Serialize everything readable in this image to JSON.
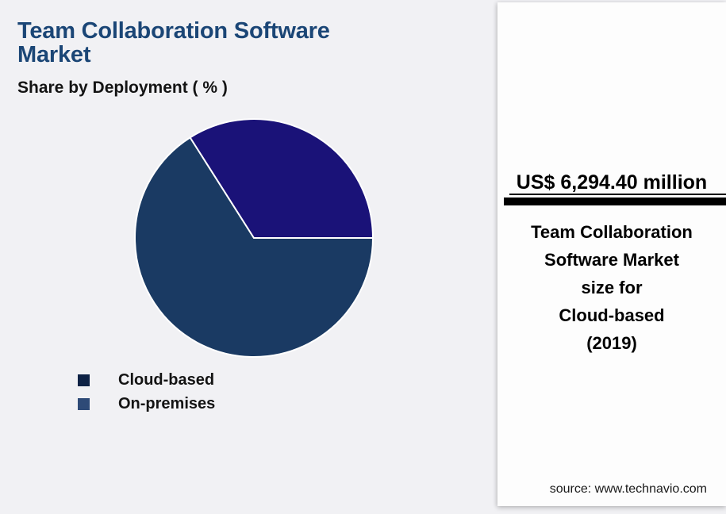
{
  "header": {
    "title": "Team Collaboration Software Market",
    "subtitle": "Share by Deployment ( % )"
  },
  "chart_data": {
    "type": "pie",
    "title": "Team Collaboration Software Market",
    "subtitle": "Share by Deployment ( % )",
    "unit": "percent",
    "start_angle_deg": 0,
    "separator_color": "#ffffff",
    "slices": [
      {
        "label": "Cloud-based",
        "value": 66,
        "color": "#1a3a63"
      },
      {
        "label": "On-premises",
        "value": 34,
        "color": "#1a1278"
      }
    ],
    "legend": [
      {
        "label": "Cloud-based",
        "swatch_color": "#0e2245"
      },
      {
        "label": "On-premises",
        "swatch_color": "#2e4a77"
      }
    ],
    "legend_position": "bottom-left"
  },
  "highlight_panel": {
    "value": "US$ 6,294.40 million",
    "description_lines": [
      "Team Collaboration",
      "Software Market",
      "size for",
      "Cloud-based",
      "(2019)"
    ],
    "source": "source: www.technavio.com"
  },
  "colors": {
    "title_blue": "#1b4676",
    "background": "#f1f1f4",
    "panel_background": "#fdfdfd",
    "divider": "#000000",
    "text": "#141414"
  }
}
